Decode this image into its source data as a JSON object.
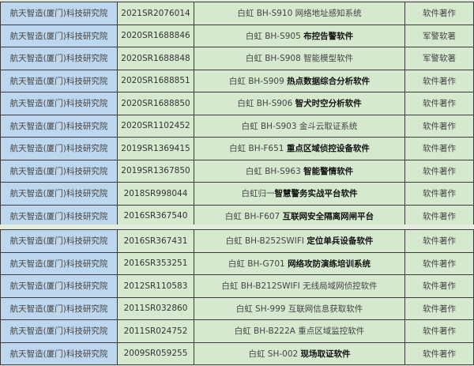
{
  "colors": {
    "org_column": "#bdd7ee",
    "cell_fill": "#d5e9cf",
    "border": "#3a3a3a"
  },
  "table1": [
    {
      "org": "航天智造(厦门)科技研究院",
      "reg_no": "2021SR2076014",
      "name_plain": "白虹 BH-S910 网络地址感知系统",
      "name_bold": "",
      "type": "软件著作"
    },
    {
      "org": "航天智造(厦门)科技研究院",
      "reg_no": "2020SR1688846",
      "name_plain": "白虹 BH-S905 ",
      "name_bold": "布控告警软件",
      "type": "军警软著"
    },
    {
      "org": "航天智造(厦门)科技研究院",
      "reg_no": "2020SR1688848",
      "name_plain": "白虹 BH-S908 智能模型软件",
      "name_bold": "",
      "type": "军警软著"
    },
    {
      "org": "航天智造(厦门)科技研究院",
      "reg_no": "2020SR1688851",
      "name_plain": "白虹 BH-S909 ",
      "name_bold": "热点数据综合分析软件",
      "type": "软件著作"
    },
    {
      "org": "航天智造(厦门)科技研究院",
      "reg_no": "2020SR1688850",
      "name_plain": "白虹 BH-S906 ",
      "name_bold": "智犬时空分析软件",
      "type": "软件著作"
    },
    {
      "org": "航天智造(厦门)科技研究院",
      "reg_no": "2020SR1102452",
      "name_plain": "白虹 BH-S903 金斗云取证系统",
      "name_bold": "",
      "type": "软件著作"
    },
    {
      "org": "航天智造(厦门)科技研究院",
      "reg_no": "2019SR1369415",
      "name_plain": "白虹 BH-F651 ",
      "name_bold": "重点区域侦控设备软件",
      "type": "软件著作"
    },
    {
      "org": "航天智造(厦门)科技研究院",
      "reg_no": "2019SR1367850",
      "name_plain": "白虹 BH-S963 ",
      "name_bold": "智能警情软件",
      "type": "软件著作"
    },
    {
      "org": "航天智造(厦门)科技研究院",
      "reg_no": "2018SR998044",
      "name_plain": "白虹归一",
      "name_bold": "智慧警务实战平台软件",
      "type": "软件著作"
    },
    {
      "org": "航天智造(厦门)科技研究院",
      "reg_no": "2016SR367540",
      "name_plain": "白虹 BH-F607 ",
      "name_bold": "互联网安全隔离网闸平台",
      "type": "软件著作"
    }
  ],
  "table2": [
    {
      "org": "航天智造(厦门)科技研究院",
      "reg_no": "2016SR367431",
      "name_plain": "白虹 BH-B252SWIFI ",
      "name_bold": "定位单兵设备软件",
      "type": "软件著作"
    },
    {
      "org": "航天智造(厦门)科技研究院",
      "reg_no": "2016SR353251",
      "name_plain": "白虹 BH-G701 ",
      "name_bold": "网络攻防演练培训系统",
      "type": "软件著作"
    },
    {
      "org": "航天智造(厦门)科技研究院",
      "reg_no": "2012SR110583",
      "name_plain": "白虹 BH-B212SWIFI 无线局域网侦控软件",
      "name_bold": "",
      "type": "软件著作"
    },
    {
      "org": "航天智造(厦门)科技研究院",
      "reg_no": "2011SR032860",
      "name_plain": "白虹 SH-999 互联网信息获取软件",
      "name_bold": "",
      "type": "软件著作"
    },
    {
      "org": "航天智造(厦门)科技研究院",
      "reg_no": "2011SR024752",
      "name_plain": "白虹 BH-B222A 重点区域监控软件",
      "name_bold": "",
      "type": "软件著作"
    },
    {
      "org": "航天智造(厦门)科技研究院",
      "reg_no": "2009SR059255",
      "name_plain": "白虹 SH-002 ",
      "name_bold": "现场取证软件",
      "type": "软件著作"
    }
  ]
}
